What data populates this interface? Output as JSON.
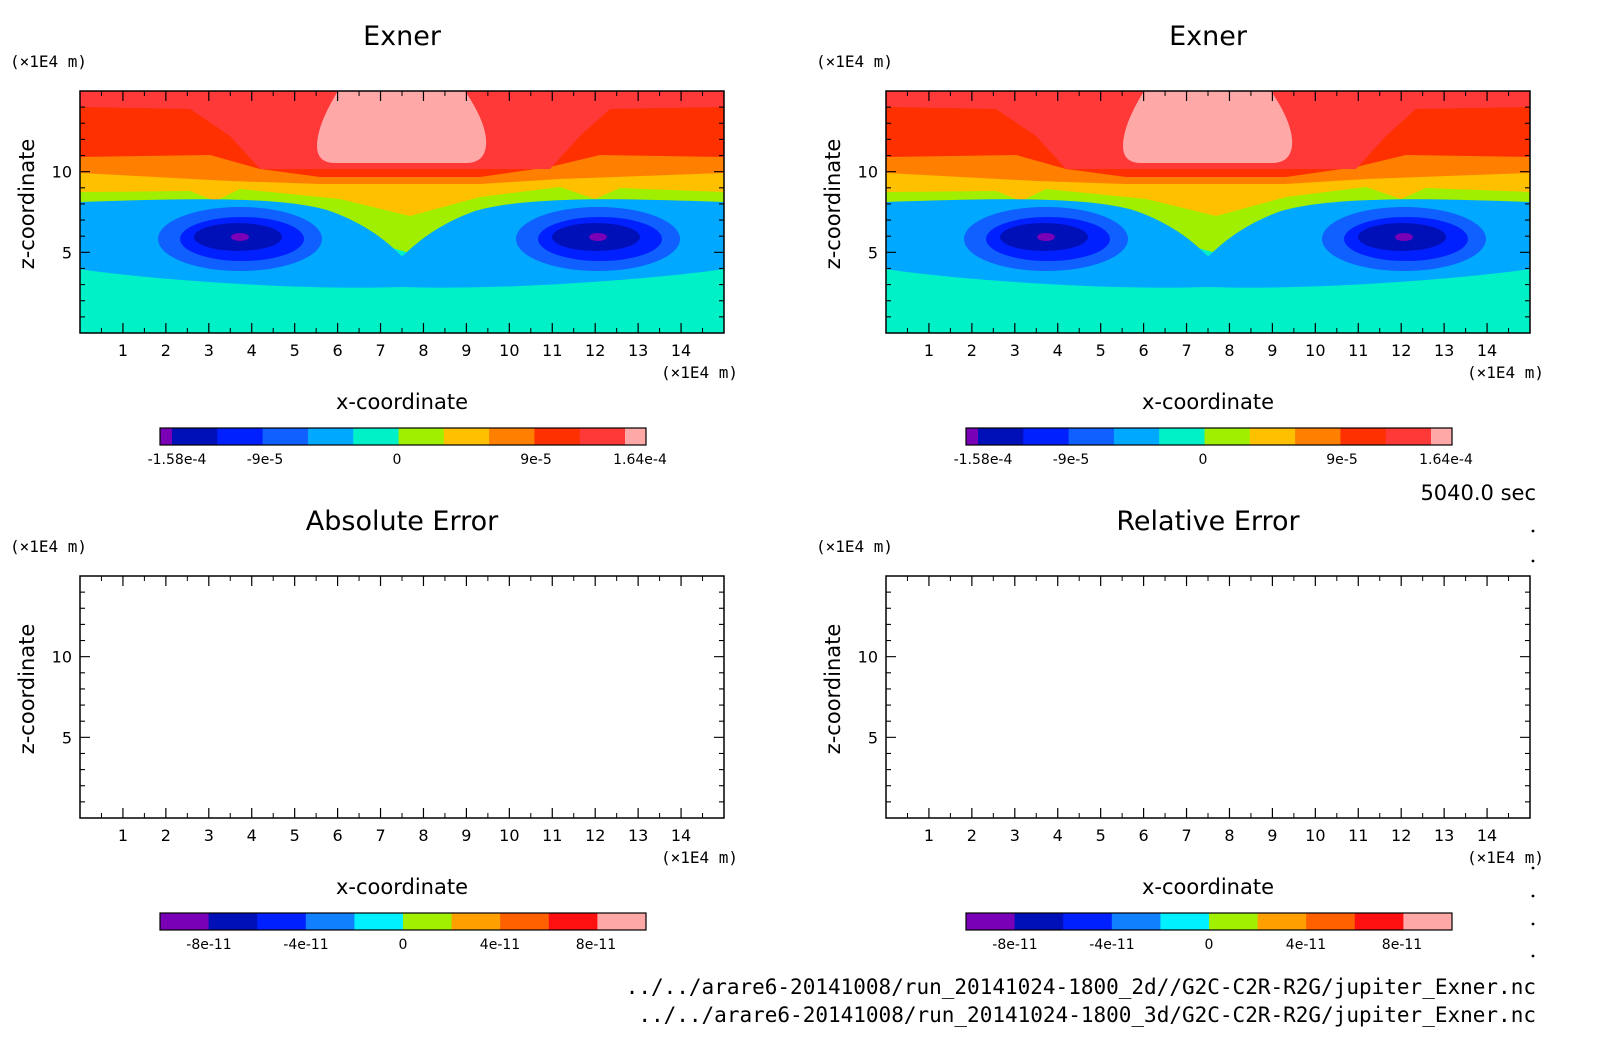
{
  "chart_data": [
    {
      "type": "heatmap",
      "title": "Exner",
      "xlabel": "x-coordinate",
      "ylabel": "z-coordinate",
      "x_unit": "(×1E4 m)",
      "y_unit": "(×1E4 m)",
      "xlim": [
        0,
        15
      ],
      "ylim": [
        0,
        15
      ],
      "x_ticks": [
        "1",
        "2",
        "3",
        "4",
        "5",
        "6",
        "7",
        "8",
        "9",
        "10",
        "11",
        "12",
        "13",
        "14"
      ],
      "y_ticks": [
        "5",
        "10"
      ],
      "colorbar": {
        "colors": [
          "#7a00b8",
          "#0010b8",
          "#0020ff",
          "#1060ff",
          "#00a8ff",
          "#00f0c8",
          "#a0ef00",
          "#ffc000",
          "#ff8000",
          "#ff3000",
          "#ff3838",
          "#ffa8a8"
        ],
        "labels": [
          "-1.58e-4",
          "-9e-5",
          "0",
          "9e-5",
          "1.64e-4"
        ]
      }
    },
    {
      "type": "heatmap",
      "title": "Exner",
      "xlabel": "x-coordinate",
      "ylabel": "z-coordinate",
      "x_unit": "(×1E4 m)",
      "y_unit": "(×1E4 m)",
      "xlim": [
        0,
        15
      ],
      "ylim": [
        0,
        15
      ],
      "x_ticks": [
        "1",
        "2",
        "3",
        "4",
        "5",
        "6",
        "7",
        "8",
        "9",
        "10",
        "11",
        "12",
        "13",
        "14"
      ],
      "y_ticks": [
        "5",
        "10"
      ],
      "colorbar": {
        "colors": [
          "#7a00b8",
          "#0010b8",
          "#0020ff",
          "#1060ff",
          "#00a8ff",
          "#00f0c8",
          "#a0ef00",
          "#ffc000",
          "#ff8000",
          "#ff3000",
          "#ff3838",
          "#ffa8a8"
        ],
        "labels": [
          "-1.58e-4",
          "-9e-5",
          "0",
          "9e-5",
          "1.64e-4"
        ]
      }
    },
    {
      "type": "heatmap",
      "title": "Absolute Error",
      "xlabel": "x-coordinate",
      "ylabel": "z-coordinate",
      "x_unit": "(×1E4 m)",
      "y_unit": "(×1E4 m)",
      "xlim": [
        0,
        15
      ],
      "ylim": [
        0,
        15
      ],
      "x_ticks": [
        "1",
        "2",
        "3",
        "4",
        "5",
        "6",
        "7",
        "8",
        "9",
        "10",
        "11",
        "12",
        "13",
        "14"
      ],
      "y_ticks": [
        "5",
        "10"
      ],
      "colorbar": {
        "colors": [
          "#7a00b8",
          "#0010b8",
          "#0020ff",
          "#1080ff",
          "#00f0ff",
          "#a0f000",
          "#ffa000",
          "#ff6000",
          "#ff1010",
          "#ffa8a8"
        ],
        "labels": [
          "-8e-11",
          "-4e-11",
          "0",
          "4e-11",
          "8e-11"
        ]
      }
    },
    {
      "type": "heatmap",
      "title": "Relative Error",
      "xlabel": "x-coordinate",
      "ylabel": "z-coordinate",
      "x_unit": "(×1E4 m)",
      "y_unit": "(×1E4 m)",
      "xlim": [
        0,
        15
      ],
      "ylim": [
        0,
        15
      ],
      "x_ticks": [
        "1",
        "2",
        "3",
        "4",
        "5",
        "6",
        "7",
        "8",
        "9",
        "10",
        "11",
        "12",
        "13",
        "14"
      ],
      "y_ticks": [
        "5",
        "10"
      ],
      "colorbar": {
        "colors": [
          "#7a00b8",
          "#0010b8",
          "#0020ff",
          "#1080ff",
          "#00f0ff",
          "#a0f000",
          "#ffa000",
          "#ff6000",
          "#ff1010",
          "#ffa8a8"
        ],
        "labels": [
          "-8e-11",
          "-4e-11",
          "0",
          "4e-11",
          "8e-11"
        ]
      }
    }
  ],
  "time_label": "5040.0 sec",
  "files": [
    "../../arare6-20141008/run_20141024-1800_2d//G2C-C2R-R2G/jupiter_Exner.nc",
    "../../arare6-20141008/run_20141024-1800_3d/G2C-C2R-R2G/jupiter_Exner.nc"
  ]
}
